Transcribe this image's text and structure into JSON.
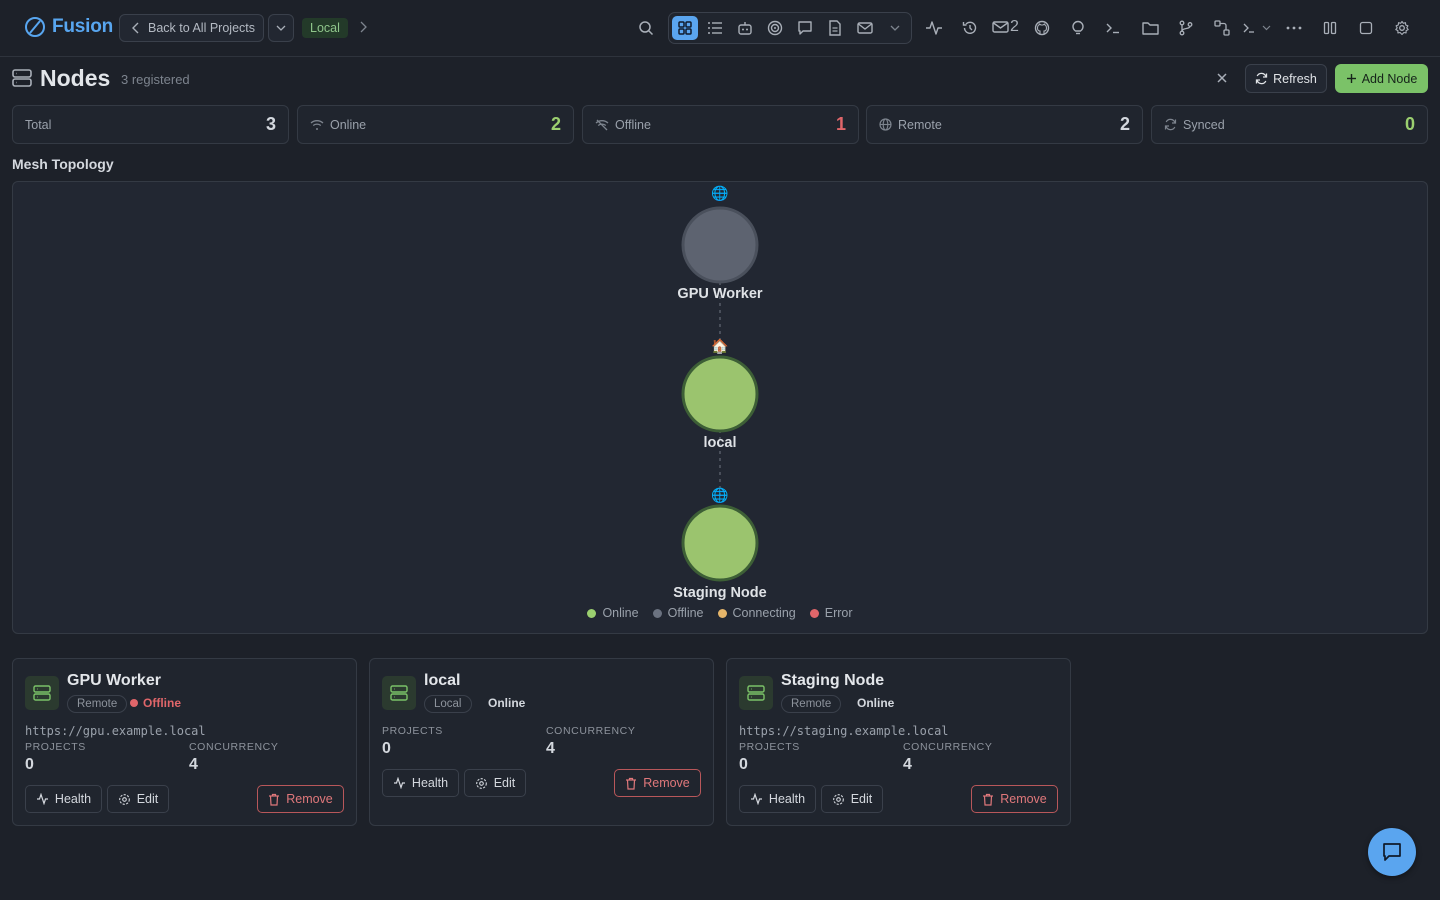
{
  "app": {
    "name": "Fusion"
  },
  "nav": {
    "back_label": "Back to All Projects",
    "project_badge": "Local",
    "mail_count": "2"
  },
  "header": {
    "title": "Nodes",
    "subtitle": "3 registered",
    "refresh_label": "Refresh",
    "add_label": "Add Node"
  },
  "stats": [
    {
      "label": "Total",
      "value": "3",
      "color": "#d4d8de"
    },
    {
      "label": "Online",
      "value": "2",
      "color": "#9bcf6f"
    },
    {
      "label": "Offline",
      "value": "1",
      "color": "#e0666a"
    },
    {
      "label": "Remote",
      "value": "2",
      "color": "#d4d8de"
    },
    {
      "label": "Synced",
      "value": "0",
      "color": "#9bcf6f"
    }
  ],
  "topology": {
    "title": "Mesh Topology",
    "nodes": [
      {
        "name": "GPU Worker",
        "status": "offline",
        "kind": "remote",
        "badge": "🌐"
      },
      {
        "name": "local",
        "status": "online",
        "kind": "local",
        "badge": "🏠"
      },
      {
        "name": "Staging Node",
        "status": "online",
        "kind": "remote",
        "badge": "🌐"
      }
    ],
    "legend": [
      {
        "label": "Online",
        "color": "#9bcf6f"
      },
      {
        "label": "Offline",
        "color": "#6b7280"
      },
      {
        "label": "Connecting",
        "color": "#e5b56a"
      },
      {
        "label": "Error",
        "color": "#e0666a"
      }
    ]
  },
  "cards": [
    {
      "name": "GPU Worker",
      "type": "Remote",
      "status": "Offline",
      "status_color": "#e0666a",
      "url": "https://gpu.example.local",
      "projects_label": "PROJECTS",
      "projects": "0",
      "concurrency_label": "CONCURRENCY",
      "concurrency": "4",
      "health_label": "Health",
      "edit_label": "Edit",
      "remove_label": "Remove"
    },
    {
      "name": "local",
      "type": "Local",
      "status": "Online",
      "status_color": "#d4d8de",
      "url": "",
      "projects_label": "PROJECTS",
      "projects": "0",
      "concurrency_label": "CONCURRENCY",
      "concurrency": "4",
      "health_label": "Health",
      "edit_label": "Edit",
      "remove_label": "Remove"
    },
    {
      "name": "Staging Node",
      "type": "Remote",
      "status": "Online",
      "status_color": "#d4d8de",
      "url": "https://staging.example.local",
      "projects_label": "PROJECTS",
      "projects": "0",
      "concurrency_label": "CONCURRENCY",
      "concurrency": "4",
      "health_label": "Health",
      "edit_label": "Edit",
      "remove_label": "Remove"
    }
  ]
}
